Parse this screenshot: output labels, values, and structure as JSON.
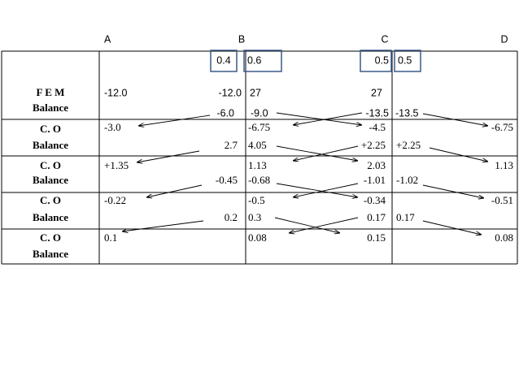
{
  "joints": [
    "A",
    "B",
    "C",
    "D"
  ],
  "distribution_factors": [
    "0.4",
    "0.6",
    "0.5",
    "0.5"
  ],
  "rows": [
    {
      "label": [
        "F E M",
        "Balance"
      ],
      "values": [
        "-12.0",
        "-12.0",
        "27",
        "27",
        "-6.0",
        "-9.0",
        "-13.5",
        "-13.5"
      ]
    },
    {
      "label": [
        "C. O",
        "Balance"
      ],
      "values": [
        "-3.0",
        "-6.75",
        "-4.5",
        "-6.75",
        "2.7",
        "4.05",
        "+2.25",
        "+2.25"
      ]
    },
    {
      "label": [
        "C. O",
        "Balance"
      ],
      "values": [
        "+1.35",
        "1.13",
        "2.03",
        "1.13",
        "-0.45",
        "-0.68",
        "-1.01",
        "-1.02"
      ]
    },
    {
      "label": [
        "C. O",
        "Balance"
      ],
      "values": [
        "-0.22",
        "-0.5",
        "-0.34",
        "-0.51",
        "0.2",
        "0.3",
        "0.17",
        "0.17"
      ]
    },
    {
      "label": [
        "C. O",
        "Balance"
      ],
      "values": [
        "0.1",
        "0.08",
        "0.15",
        "0.08"
      ]
    }
  ]
}
